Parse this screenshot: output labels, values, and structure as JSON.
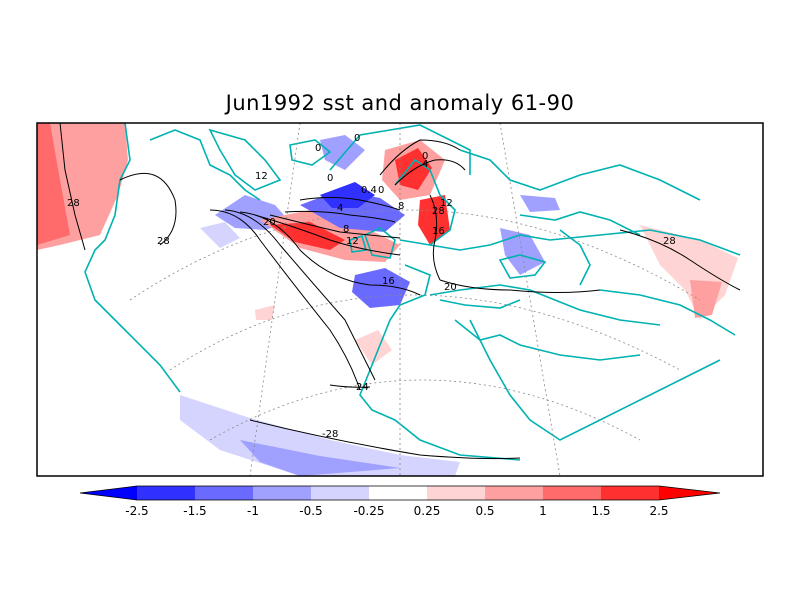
{
  "title": "Jun1992 sst and anomaly 61-90",
  "contour_labels": [
    "0",
    "0",
    "0",
    "4",
    "0",
    "4",
    "8",
    "8",
    "12",
    "12",
    "12",
    "16",
    "16",
    "20",
    "20",
    "24",
    "28",
    "28",
    "28",
    "28",
    "-28",
    "0.4",
    "0"
  ],
  "colorbar": {
    "ticks": [
      "-2.5",
      "-1.5",
      "-1",
      "-0.5",
      "-0.25",
      "0.25",
      "0.5",
      "1",
      "1.5",
      "2.5"
    ],
    "colors": [
      "#0000ff",
      "#3030ff",
      "#6a6aff",
      "#a0a0ff",
      "#d4d4ff",
      "#ffffff",
      "#ffd4d4",
      "#ffa0a0",
      "#ff6a6a",
      "#ff3030",
      "#ff0000"
    ]
  }
}
